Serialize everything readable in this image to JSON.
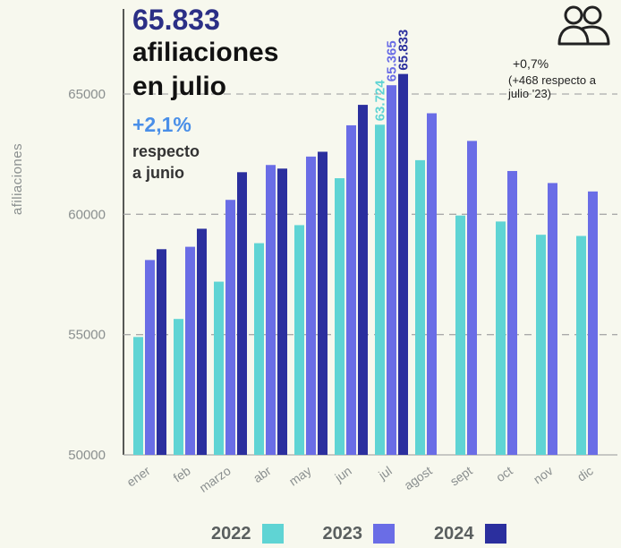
{
  "headline": {
    "value": "65.833",
    "text_line1": "afiliaciones",
    "text_line2": "en julio"
  },
  "monthly_change": {
    "value": "+2,1%",
    "text_line1": "respecto",
    "text_line2": "a junio"
  },
  "yearly_change": {
    "value": "+0,7%",
    "text_line1": "(+468 respecto a",
    "text_line2": "julio '23)"
  },
  "icon": "users-icon",
  "chart_data": {
    "type": "bar",
    "ylabel": "afiliaciones",
    "xlabel": "",
    "ylim": [
      50000,
      65833
    ],
    "yticks": [
      50000,
      55000,
      60000,
      65000
    ],
    "yticks_labels": [
      "50000",
      "55000",
      "60000",
      "65000"
    ],
    "grid": "horizontal dashed",
    "categories": [
      "ener",
      "feb",
      "marzo",
      "abr",
      "may",
      "jun",
      "jul",
      "agost",
      "sept",
      "oct",
      "nov",
      "dic"
    ],
    "series": [
      {
        "name": "2022",
        "color": "#5fd4d4",
        "values": [
          54900,
          55650,
          57200,
          58800,
          59550,
          61500,
          63724,
          62250,
          59950,
          59700,
          59150,
          59100
        ]
      },
      {
        "name": "2023",
        "color": "#6a6de6",
        "values": [
          58100,
          58650,
          60600,
          62050,
          62400,
          63700,
          65365,
          64200,
          63050,
          61800,
          61300,
          60950
        ]
      },
      {
        "name": "2024",
        "color": "#2b2f9e",
        "values": [
          58550,
          59400,
          61750,
          61900,
          62600,
          64550,
          65833,
          null,
          null,
          null,
          null,
          null
        ]
      }
    ],
    "data_labels": [
      {
        "series": "2022",
        "category": "jul",
        "text": "63.724"
      },
      {
        "series": "2023",
        "category": "jul",
        "text": "65.365"
      },
      {
        "series": "2024",
        "category": "jul",
        "text": "65.833"
      }
    ],
    "legend_position": "bottom"
  }
}
